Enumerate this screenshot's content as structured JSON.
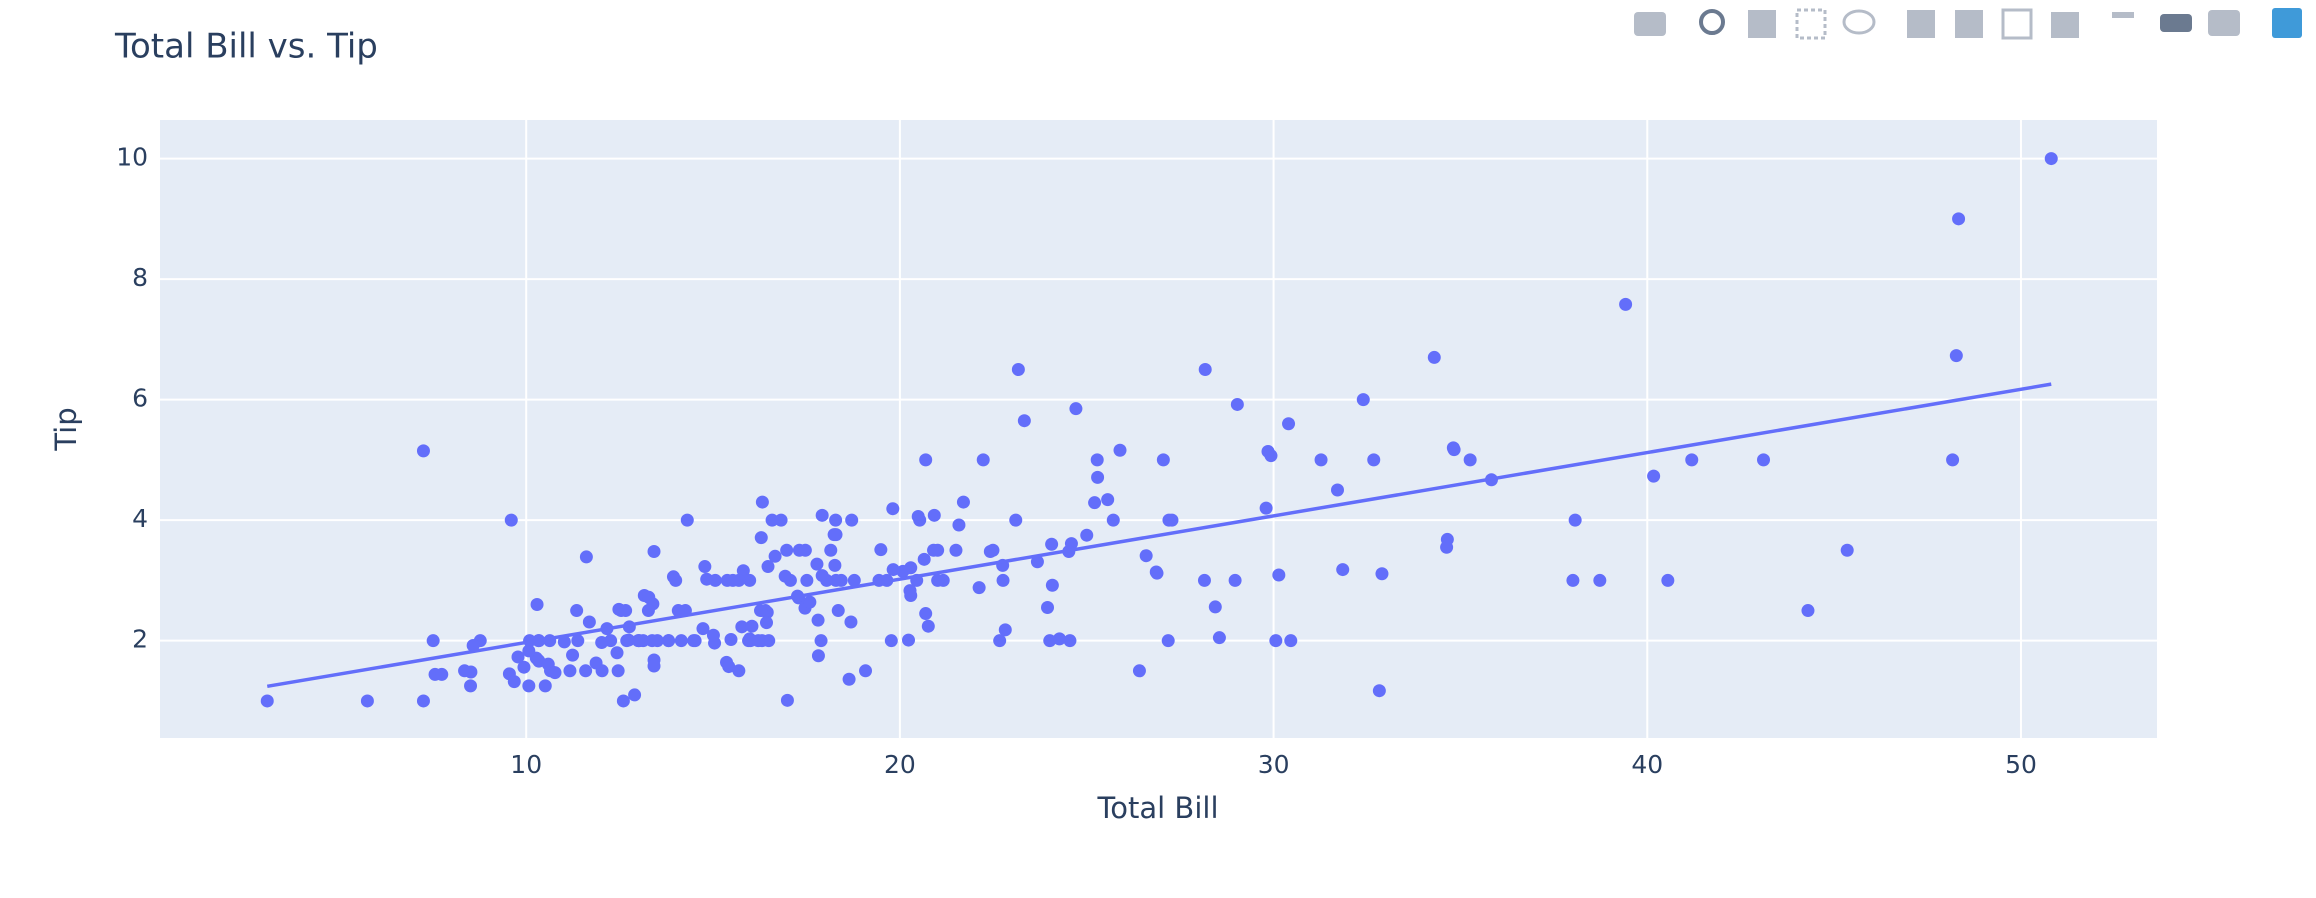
{
  "chart_data": {
    "type": "scatter",
    "title": "Total Bill vs. Tip",
    "x_label": "Total Bill",
    "y_label": "Tip",
    "color": "#636efa",
    "grid": true,
    "xlim": [
      0.2,
      53.64
    ],
    "ylim": [
      0.385,
      10.64
    ],
    "xticks": [
      10,
      20,
      30,
      40,
      50
    ],
    "yticks": [
      2,
      4,
      6,
      8,
      10
    ],
    "x": [
      16.99,
      10.34,
      21.01,
      23.68,
      24.59,
      25.29,
      8.77,
      26.88,
      15.04,
      14.78,
      10.27,
      35.26,
      15.42,
      18.43,
      14.83,
      21.58,
      10.33,
      16.29,
      16.97,
      20.65,
      17.92,
      20.29,
      15.77,
      39.42,
      19.82,
      17.81,
      13.37,
      12.69,
      21.7,
      19.65,
      9.55,
      18.35,
      15.06,
      20.69,
      17.78,
      24.06,
      16.31,
      16.93,
      18.69,
      31.27,
      16.04,
      17.46,
      13.94,
      9.68,
      30.4,
      18.29,
      22.23,
      32.4,
      28.55,
      18.04,
      12.54,
      10.29,
      34.81,
      9.94,
      25.56,
      19.49,
      38.01,
      26.41,
      11.24,
      48.27,
      20.29,
      13.81,
      11.02,
      18.29,
      17.59,
      20.08,
      16.45,
      3.07,
      20.23,
      15.01,
      12.02,
      17.07,
      26.86,
      25.28,
      14.73,
      10.51,
      17.92,
      27.2,
      22.76,
      17.29,
      19.44,
      16.66,
      10.07,
      32.68,
      15.98,
      34.83,
      13.03,
      18.28,
      24.71,
      21.16,
      28.97,
      22.49,
      5.75,
      16.32,
      22.75,
      40.17,
      27.28,
      12.03,
      21.01,
      12.46,
      11.35,
      15.38,
      44.3,
      22.42,
      20.92,
      15.36,
      20.49,
      25.21,
      18.24,
      14.31,
      14.0,
      7.25,
      38.07,
      23.95,
      25.71,
      17.31,
      29.93,
      10.65,
      12.43,
      24.08,
      11.69,
      13.42,
      14.26,
      15.95,
      12.48,
      29.8,
      8.52,
      14.52,
      11.38,
      22.82,
      19.08,
      20.27,
      11.17,
      12.26,
      18.26,
      8.51,
      10.33,
      14.15,
      16.0,
      13.16,
      17.47,
      34.3,
      41.19,
      27.05,
      16.43,
      8.35,
      18.64,
      11.87,
      9.78,
      7.51,
      14.07,
      13.13,
      17.26,
      24.55,
      19.77,
      29.85,
      48.17,
      25.0,
      13.39,
      16.49,
      21.5,
      12.66,
      16.21,
      13.81,
      17.51,
      24.52,
      20.76,
      31.71,
      10.59,
      10.63,
      50.81,
      15.81,
      7.25,
      31.85,
      16.82,
      32.9,
      17.89,
      14.48,
      9.6,
      34.63,
      34.65,
      23.33,
      45.35,
      23.17,
      40.55,
      20.69,
      20.9,
      30.46,
      18.15,
      23.1,
      15.69,
      19.81,
      28.44,
      15.48,
      16.58,
      7.56,
      10.34,
      43.11,
      13.0,
      13.51,
      18.71,
      12.74,
      13.0,
      16.4,
      20.53,
      16.47,
      26.59,
      38.73,
      24.27,
      12.76,
      30.06,
      25.89,
      48.33,
      13.27,
      28.17,
      12.9,
      28.15,
      11.59,
      7.74,
      30.14,
      12.16,
      13.42,
      8.58,
      15.98,
      13.42,
      16.27,
      10.09,
      20.45,
      13.28,
      22.12,
      24.01,
      15.69,
      11.61,
      10.77,
      15.53,
      10.07,
      12.6,
      32.83,
      35.83,
      29.03,
      27.18,
      22.67,
      17.82,
      18.78
    ],
    "values": [
      1.01,
      1.66,
      3.5,
      3.31,
      3.61,
      4.71,
      2.0,
      3.12,
      1.96,
      3.23,
      1.71,
      5.0,
      1.57,
      3.0,
      3.02,
      3.92,
      1.67,
      3.71,
      3.5,
      3.35,
      4.08,
      2.75,
      2.23,
      7.58,
      3.18,
      2.34,
      2.0,
      2.0,
      4.3,
      3.0,
      1.45,
      2.5,
      3.0,
      2.45,
      3.27,
      3.6,
      2.0,
      3.07,
      2.31,
      5.0,
      2.24,
      2.54,
      3.06,
      1.32,
      5.6,
      3.0,
      5.0,
      6.0,
      2.05,
      3.0,
      2.5,
      2.6,
      5.2,
      1.56,
      4.34,
      3.51,
      3.0,
      1.5,
      1.76,
      6.73,
      3.21,
      2.0,
      1.98,
      3.76,
      2.64,
      3.15,
      2.47,
      1.0,
      2.01,
      2.09,
      1.97,
      3.0,
      3.14,
      5.0,
      2.2,
      1.25,
      3.08,
      4.0,
      3.0,
      2.71,
      3.0,
      3.4,
      1.83,
      5.0,
      2.03,
      5.17,
      2.0,
      4.0,
      5.85,
      3.0,
      3.0,
      3.5,
      1.0,
      4.3,
      3.25,
      4.73,
      4.0,
      1.5,
      3.0,
      1.5,
      2.5,
      3.0,
      2.5,
      3.48,
      4.08,
      1.64,
      4.06,
      4.29,
      3.76,
      4.0,
      3.0,
      1.0,
      4.0,
      2.55,
      4.0,
      3.5,
      5.07,
      1.5,
      1.8,
      2.92,
      2.31,
      1.68,
      2.5,
      2.0,
      2.52,
      4.2,
      1.48,
      2.0,
      2.0,
      2.18,
      1.5,
      2.83,
      1.5,
      2.0,
      3.25,
      1.25,
      2.0,
      2.0,
      2.0,
      2.75,
      3.5,
      6.7,
      5.0,
      5.0,
      2.3,
      1.5,
      1.36,
      1.63,
      1.73,
      2.0,
      2.5,
      2.0,
      2.74,
      2.0,
      2.0,
      5.14,
      5.0,
      3.75,
      2.61,
      2.0,
      3.5,
      2.5,
      2.0,
      2.0,
      3.0,
      3.48,
      2.24,
      4.5,
      1.61,
      2.0,
      10.0,
      3.16,
      5.15,
      3.18,
      4.0,
      3.11,
      2.0,
      2.0,
      4.0,
      3.55,
      3.68,
      5.65,
      3.5,
      6.5,
      3.0,
      5.0,
      3.5,
      2.0,
      3.5,
      4.0,
      1.5,
      4.19,
      2.56,
      2.02,
      4.0,
      1.44,
      2.0,
      5.0,
      2.0,
      2.0,
      4.0,
      2.01,
      2.0,
      2.5,
      4.0,
      3.23,
      3.41,
      3.0,
      2.03,
      2.23,
      2.0,
      5.16,
      9.0,
      2.5,
      6.5,
      1.1,
      3.0,
      1.5,
      1.44,
      3.09,
      2.2,
      3.48,
      1.92,
      3.0,
      1.58,
      2.5,
      2.0,
      3.0,
      2.72,
      2.88,
      2.0,
      3.0,
      3.39,
      1.47,
      3.0,
      1.25,
      1.0,
      1.17,
      4.67,
      5.92,
      2.0,
      2.0,
      1.75,
      3.0
    ],
    "trendline": {
      "x": [
        3.07,
        50.81
      ],
      "values": [
        1.2427,
        6.2567
      ]
    }
  }
}
